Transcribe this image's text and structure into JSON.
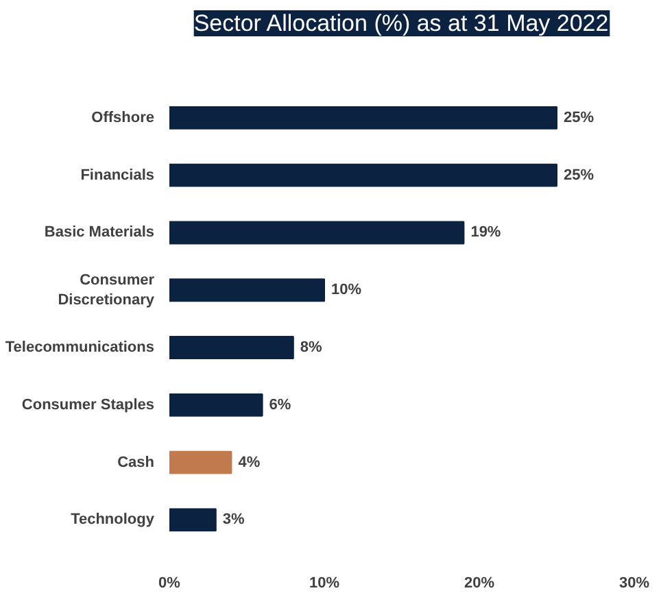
{
  "chart_data": {
    "type": "bar",
    "orientation": "horizontal",
    "title": "Sector Allocation (%) as at 31 May 2022",
    "categories": [
      "Offshore",
      "Financials",
      "Basic Materials",
      "Consumer Discretionary",
      "Telecommunications",
      "Consumer Staples",
      "Cash",
      "Technology"
    ],
    "values": [
      25,
      25,
      19,
      10,
      8,
      6,
      4,
      3
    ],
    "colors": [
      "#0b2341",
      "#0b2341",
      "#0b2341",
      "#0b2341",
      "#0b2341",
      "#0b2341",
      "#c17a4e",
      "#0b2341"
    ],
    "value_labels": [
      "25%",
      "25%",
      "19%",
      "10%",
      "8%",
      "6%",
      "4%",
      "3%"
    ],
    "xlim": [
      0,
      30
    ],
    "xticks": [
      {
        "value": 0,
        "label": "0%"
      },
      {
        "value": 10,
        "label": "10%"
      },
      {
        "value": 20,
        "label": "20%"
      },
      {
        "value": 30,
        "label": "30%"
      }
    ],
    "grid": false
  }
}
